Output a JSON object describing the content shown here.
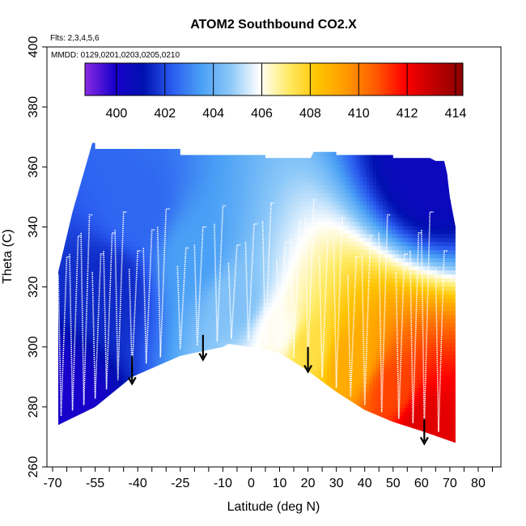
{
  "chart_data": {
    "type": "heatmap",
    "title": "ATOM2 Southbound CO2.X",
    "annotations": {
      "flights": "Flts: 2,3,4,5,6",
      "dates": "MMDD: 0129,0201,0203,0205,0210"
    },
    "xlabel": "Latitude (deg N)",
    "ylabel": "Theta (C)",
    "xlim": [
      -72,
      88
    ],
    "ylim": [
      260,
      400
    ],
    "x_ticks": [
      -70,
      -65,
      -60,
      -55,
      -50,
      -45,
      -40,
      -35,
      -30,
      -25,
      -20,
      -15,
      -10,
      -5,
      0,
      5,
      10,
      15,
      20,
      25,
      30,
      35,
      40,
      45,
      50,
      55,
      60,
      65,
      70,
      75,
      80,
      85
    ],
    "x_tick_labels": [
      {
        "value": -70,
        "text": "-70"
      },
      {
        "value": -55,
        "text": "-55"
      },
      {
        "value": -40,
        "text": "-40"
      },
      {
        "value": -25,
        "text": "-25"
      },
      {
        "value": -10,
        "text": "-10"
      },
      {
        "value": 0,
        "text": "0"
      },
      {
        "value": 10,
        "text": "10"
      },
      {
        "value": 20,
        "text": "20"
      },
      {
        "value": 30,
        "text": "30"
      },
      {
        "value": 40,
        "text": "40"
      },
      {
        "value": 50,
        "text": "50"
      },
      {
        "value": 60,
        "text": "60"
      },
      {
        "value": 70,
        "text": "70"
      },
      {
        "value": 80,
        "text": "80"
      }
    ],
    "y_ticks": [
      260,
      280,
      300,
      320,
      340,
      360,
      380,
      400
    ],
    "y_tick_labels": [
      "260",
      "280",
      "300",
      "320",
      "340",
      "360",
      "380",
      "400"
    ],
    "colorbar": {
      "range": [
        398.7,
        414.3
      ],
      "ticks": [
        400,
        402,
        404,
        406,
        408,
        410,
        412,
        414
      ],
      "tick_labels": [
        "400",
        "402",
        "404",
        "406",
        "408",
        "410",
        "412",
        "414"
      ],
      "colors": [
        "#8a2be2",
        "#1a00cc",
        "#0010b0",
        "#2a5cf0",
        "#4aa0f5",
        "#8cc8f8",
        "#ffffff",
        "#ffeb66",
        "#ffc400",
        "#ff9900",
        "#ff5a00",
        "#ff0000",
        "#c00000",
        "#8a0000"
      ]
    },
    "domain_top": [
      [
        -68,
        325
      ],
      [
        -63,
        345
      ],
      [
        -56,
        368
      ],
      [
        -55,
        368
      ],
      [
        -55,
        366
      ],
      [
        -25,
        366
      ],
      [
        -25,
        364
      ],
      [
        5,
        364
      ],
      [
        5,
        363
      ],
      [
        -5,
        363
      ],
      [
        0,
        363
      ],
      [
        20,
        363
      ],
      [
        21,
        363
      ],
      [
        22,
        365
      ],
      [
        30,
        365
      ],
      [
        30,
        364
      ],
      [
        50,
        364
      ],
      [
        50,
        363
      ],
      [
        63,
        363
      ],
      [
        65,
        362
      ],
      [
        68,
        362
      ],
      [
        69,
        358
      ],
      [
        70,
        350
      ],
      [
        72,
        340
      ],
      [
        72,
        265
      ]
    ],
    "domain_bottom": [
      [
        -68,
        274
      ],
      [
        -55,
        280
      ],
      [
        -42,
        290
      ],
      [
        -25,
        297
      ],
      [
        -10,
        300
      ],
      [
        -8,
        301
      ],
      [
        0,
        300
      ],
      [
        10,
        298
      ],
      [
        20,
        292
      ],
      [
        30,
        285
      ],
      [
        40,
        279
      ],
      [
        50,
        275
      ],
      [
        60,
        272
      ],
      [
        72,
        268
      ]
    ],
    "co2_field_anchors": [
      {
        "lat": -68,
        "theta": 280,
        "co2": 400.0
      },
      {
        "lat": -50,
        "theta": 320,
        "co2": 401.5
      },
      {
        "lat": -40,
        "theta": 345,
        "co2": 402.5
      },
      {
        "lat": -20,
        "theta": 330,
        "co2": 403.5
      },
      {
        "lat": -5,
        "theta": 315,
        "co2": 404.5
      },
      {
        "lat": 10,
        "theta": 305,
        "co2": 406.0
      },
      {
        "lat": 20,
        "theta": 300,
        "co2": 407.5
      },
      {
        "lat": 35,
        "theta": 295,
        "co2": 409.0
      },
      {
        "lat": 50,
        "theta": 285,
        "co2": 411.0
      },
      {
        "lat": 60,
        "theta": 275,
        "co2": 412.5
      },
      {
        "lat": 65,
        "theta": 360,
        "co2": 400.5
      }
    ],
    "profile_latitudes": [
      -66,
      -62,
      -58,
      -54,
      -50,
      -46,
      -41,
      -36,
      -31,
      -24,
      -18,
      -11,
      -6,
      0,
      6,
      11,
      16,
      21,
      26,
      31,
      36,
      41,
      47,
      53,
      58,
      62,
      67
    ],
    "arrows": [
      {
        "lat": -42,
        "theta_start": 297,
        "theta_end": 288
      },
      {
        "lat": -17,
        "theta_start": 304,
        "theta_end": 296
      },
      {
        "lat": 20,
        "theta_start": 300,
        "theta_end": 292
      },
      {
        "lat": 61,
        "theta_start": 276,
        "theta_end": 268
      }
    ]
  }
}
